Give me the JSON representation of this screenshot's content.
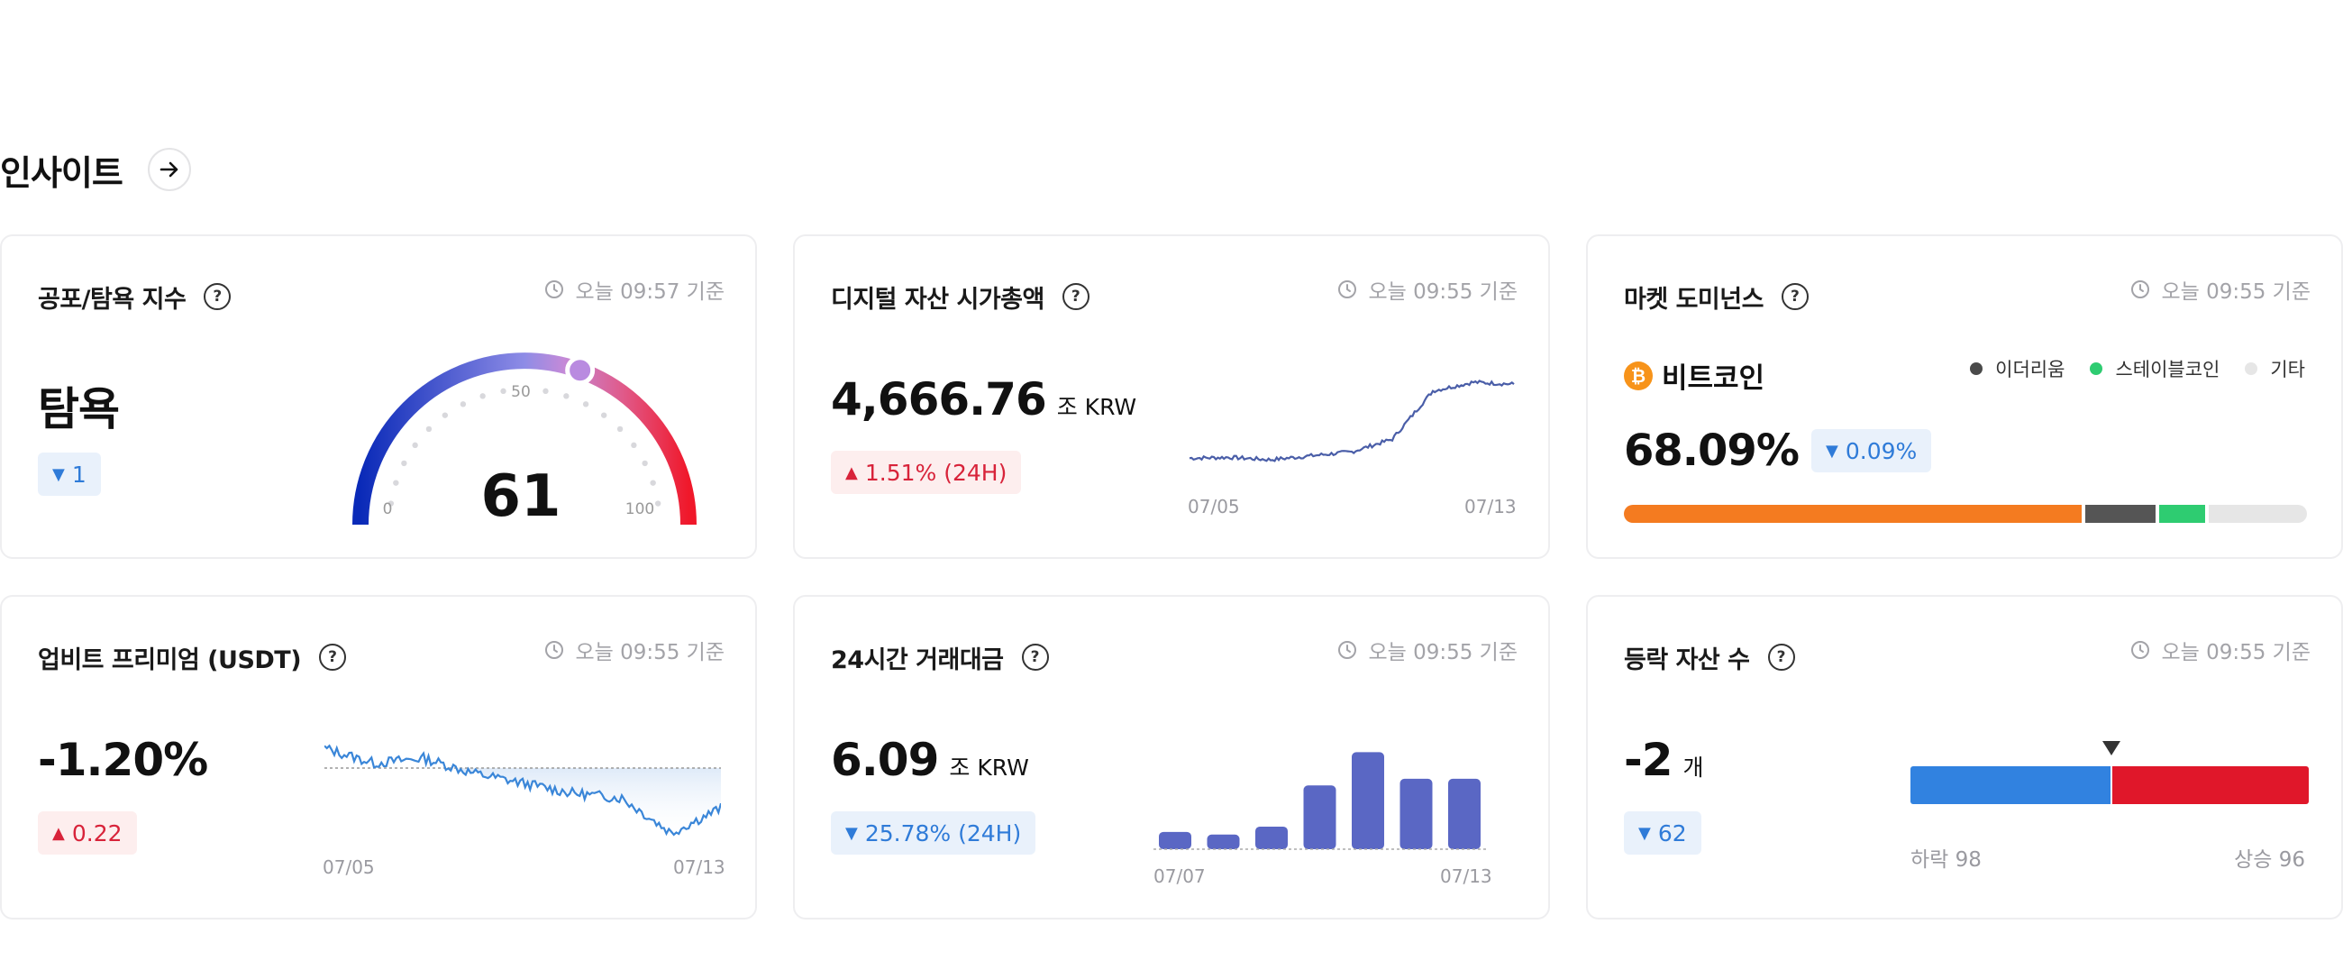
{
  "section": {
    "title": "인사이트"
  },
  "cards": {
    "fear_greed": {
      "title": "공포/탐욕 지수",
      "timestamp": "오늘 09:57 기준",
      "status": "탐욕",
      "change": "1",
      "change_direction": "down",
      "gauge": {
        "value": 61,
        "min_label": "0",
        "mid_label": "50",
        "max_label": "100"
      }
    },
    "market_cap": {
      "title": "디지털 자산 시가총액",
      "timestamp": "오늘 09:55 기준",
      "value": "4,666.76",
      "unit": "조 KRW",
      "change": "1.51% (24H)",
      "change_direction": "up",
      "x_start": "07/05",
      "x_end": "07/13"
    },
    "dominance": {
      "title": "마켓 도미넌스",
      "timestamp": "오늘 09:55 기준",
      "coin": "비트코인",
      "value": "68.09%",
      "change": "0.09%",
      "change_direction": "down",
      "legend": [
        {
          "label": "이더리움",
          "color": "#4a4a4a"
        },
        {
          "label": "스테이블코인",
          "color": "#2ecc71"
        },
        {
          "label": "기타",
          "color": "#e6e6e6"
        }
      ],
      "colors": {
        "bitcoin": "#f47b20",
        "ethereum": "#555555",
        "stablecoin": "#2ecc71",
        "other": "#e6e6e6"
      }
    },
    "premium": {
      "title": "업비트 프리미엄 (USDT)",
      "timestamp": "오늘 09:55 기준",
      "value": "-1.20%",
      "change": "0.22",
      "change_direction": "up",
      "x_start": "07/05",
      "x_end": "07/13"
    },
    "volume": {
      "title": "24시간 거래대금",
      "timestamp": "오늘 09:55 기준",
      "value": "6.09",
      "unit": "조 KRW",
      "change": "25.78% (24H)",
      "change_direction": "down",
      "x_start": "07/07",
      "x_end": "07/13"
    },
    "adv_dec": {
      "title": "등락 자산 수",
      "timestamp": "오늘 09:55 기준",
      "value": "-2",
      "unit": "개",
      "change": "62",
      "change_direction": "down",
      "down_label": "하락 98",
      "up_label": "상승 96",
      "down_count": 98,
      "up_count": 96,
      "colors": {
        "down": "#3182e0",
        "up": "#e0172a"
      }
    }
  },
  "chart_data": [
    {
      "type": "line",
      "x": [
        "07/05",
        "07/06",
        "07/07",
        "07/08",
        "07/09",
        "07/10",
        "07/11",
        "07/12",
        "07/13"
      ],
      "values": [
        4480,
        4482,
        4476,
        4486,
        4496,
        4528,
        4650,
        4672,
        4667
      ]
    },
    {
      "type": "line",
      "x": [
        "07/05",
        "07/06",
        "07/07",
        "07/08",
        "07/09",
        "07/10",
        "07/11",
        "07/12",
        "07/13"
      ],
      "values": [
        -0.6,
        -0.75,
        -0.7,
        -0.85,
        -0.95,
        -1.05,
        -1.1,
        -1.45,
        -1.2
      ]
    },
    {
      "type": "bar",
      "categories": [
        "07/07",
        "07/08",
        "07/09",
        "07/10",
        "07/11",
        "07/12",
        "07/13"
      ],
      "values": [
        1.3,
        1.1,
        1.7,
        4.8,
        7.3,
        5.3,
        5.3
      ]
    },
    {
      "type": "bar",
      "categories": [
        "비트코인",
        "이더리움",
        "스테이블코인",
        "기타"
      ],
      "values": [
        68.09,
        10.5,
        6.8,
        14.6
      ]
    }
  ]
}
